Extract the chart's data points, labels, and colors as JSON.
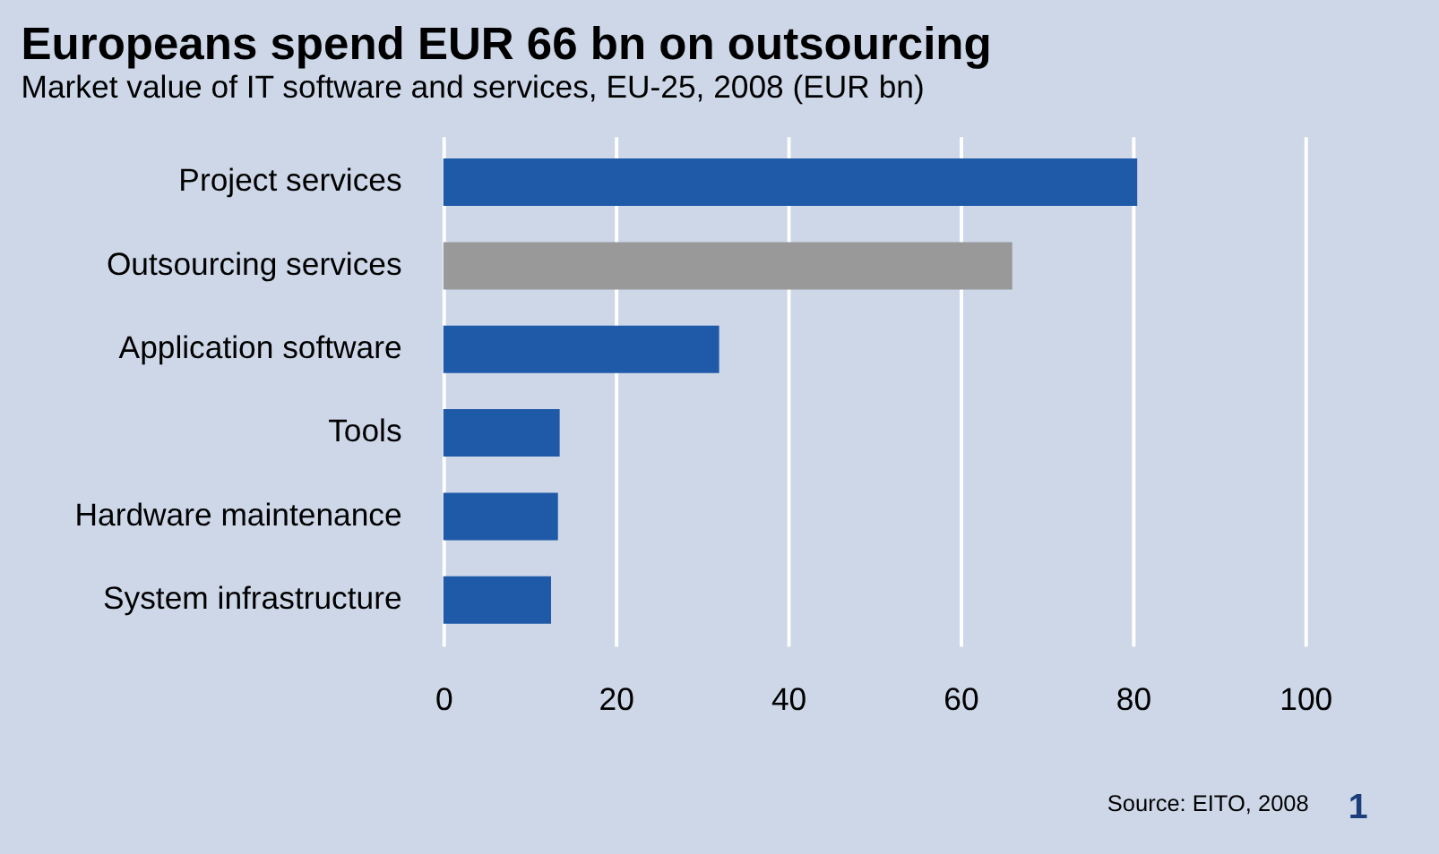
{
  "chart_data": {
    "type": "bar",
    "orientation": "horizontal",
    "title": "Europeans spend EUR 66 bn on outsourcing",
    "subtitle": "Market value of IT software and services,  EU-25, 2008 (EUR bn)",
    "categories": [
      "Project services",
      "Outsourcing services",
      "Application software",
      "Tools",
      "Hardware maintenance",
      "System infrastructure"
    ],
    "values": [
      80.5,
      66,
      32,
      13.5,
      13.3,
      12.5
    ],
    "colors": [
      "#1f5aa8",
      "#999999",
      "#1f5aa8",
      "#1f5aa8",
      "#1f5aa8",
      "#1f5aa8"
    ],
    "xlim": [
      0,
      100
    ],
    "xticks": [
      0,
      20,
      40,
      60,
      80,
      100
    ],
    "grid": "x",
    "annotations": [
      "Source: EITO, 2008",
      "1"
    ]
  }
}
